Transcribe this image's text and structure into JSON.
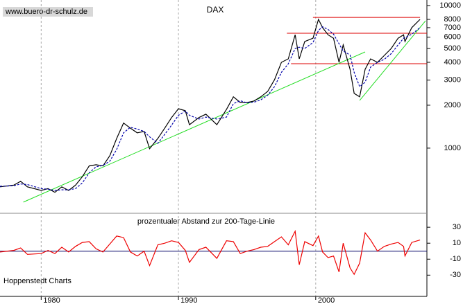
{
  "chart_data": [
    {
      "type": "line",
      "title": "DAX",
      "source": "www.buero-dr-schulz.de",
      "log_scale": true,
      "x": [
        1977,
        1978,
        1978.5,
        1979,
        1980,
        1980.5,
        1981,
        1981.5,
        1982,
        1982.5,
        1983,
        1983.5,
        1984,
        1984.5,
        1985,
        1985.5,
        1986,
        1986.5,
        1987,
        1987.5,
        1987.9,
        1988.5,
        1989,
        1989.5,
        1990,
        1990.5,
        1990.8,
        1991.5,
        1992,
        1992.8,
        1993.5,
        1994,
        1994.5,
        1995,
        1995.5,
        1996,
        1996.5,
        1997,
        1997.5,
        1998,
        1998.5,
        1998.8,
        1999.2,
        1999.8,
        2000.2,
        2000.5,
        2000.9,
        2001.3,
        2001.7,
        2002,
        2002.5,
        2002.8,
        2003.2,
        2003.6,
        2004,
        2004.5,
        2005,
        2005.5,
        2006,
        2006.4,
        2006.5,
        2007,
        2007.6
      ],
      "series": [
        {
          "color": "#000000",
          "values": [
            535,
            550,
            585,
            535,
            505,
            520,
            490,
            535,
            505,
            550,
            630,
            750,
            765,
            750,
            885,
            1170,
            1500,
            1380,
            1280,
            1310,
            990,
            1170,
            1380,
            1640,
            1890,
            1830,
            1460,
            1640,
            1730,
            1460,
            1870,
            2290,
            2090,
            2090,
            2140,
            2290,
            2500,
            3020,
            4000,
            4230,
            6240,
            4230,
            5600,
            5900,
            8000,
            7000,
            6240,
            5900,
            4000,
            5300,
            3570,
            2420,
            2290,
            3570,
            4230,
            4000,
            4470,
            5000,
            5900,
            6240,
            5600,
            7000,
            8000
          ]
        },
        {
          "color": "#0000aa",
          "dashed": true,
          "values": [
            540,
            545,
            560,
            555,
            520,
            515,
            505,
            510,
            510,
            520,
            570,
            670,
            740,
            755,
            810,
            980,
            1280,
            1400,
            1360,
            1310,
            1200,
            1080,
            1250,
            1450,
            1700,
            1820,
            1700,
            1600,
            1650,
            1600,
            1650,
            2050,
            2150,
            2080,
            2100,
            2180,
            2350,
            2700,
            3400,
            3900,
            5000,
            5100,
            5000,
            5500,
            6700,
            7100,
            6800,
            6300,
            5400,
            4800,
            4500,
            3400,
            2700,
            2900,
            3700,
            4000,
            4200,
            4600,
            5300,
            5900,
            5950,
            6300,
            7000
          ]
        }
      ],
      "xlim": [
        1977,
        2008.1
      ],
      "xticks": [
        1980,
        1990,
        2000
      ],
      "grid": true,
      "ylim": [
        361,
        10700
      ],
      "yticks": [
        1000,
        2000,
        3000,
        4000,
        5000,
        6000,
        7000,
        8000,
        10000
      ],
      "hlines": [
        {
          "value": 8260,
          "x": [
            1999.8,
            2007.6
          ],
          "color": "#dd0000"
        },
        {
          "value": 6400,
          "x": [
            1997.9,
            2008.1
          ],
          "color": "#dd0000"
        },
        {
          "value": 3910,
          "x": [
            1998.2,
            2008.1
          ],
          "color": "#dd0000"
        }
      ],
      "trendlines": [
        {
          "x": [
            1978.7,
            2003.6
          ],
          "y": [
            418,
            4730
          ],
          "color": "#22dd22"
        },
        {
          "x": [
            2003.2,
            2008.0
          ],
          "y": [
            2160,
            7820
          ],
          "color": "#22dd22"
        }
      ]
    },
    {
      "type": "line",
      "title": "prozentualer Abstand zur 200-Tage-Linie",
      "note": "Hoppenstedt Charts",
      "series": [
        {
          "color": "#ee0000",
          "values": [
            -1,
            1,
            4,
            -4,
            -3,
            1,
            -3,
            5,
            -1,
            6,
            11,
            12,
            3,
            -1,
            9,
            19,
            17,
            -1,
            -6,
            0,
            -18,
            8,
            10,
            13,
            11,
            1,
            -14,
            2,
            5,
            -9,
            13,
            12,
            -3,
            0,
            2,
            5,
            6,
            12,
            18,
            8,
            25,
            -17,
            12,
            7,
            19,
            -1,
            -8,
            -6,
            -26,
            10,
            -21,
            -29,
            -15,
            23,
            14,
            0,
            6,
            9,
            11,
            6,
            -6,
            11,
            14
          ]
        }
      ],
      "ylim": [
        -54,
        44
      ],
      "yticks": [
        -30,
        -10,
        10,
        30
      ],
      "zero_line": 0,
      "zero_color": "#000066"
    }
  ]
}
